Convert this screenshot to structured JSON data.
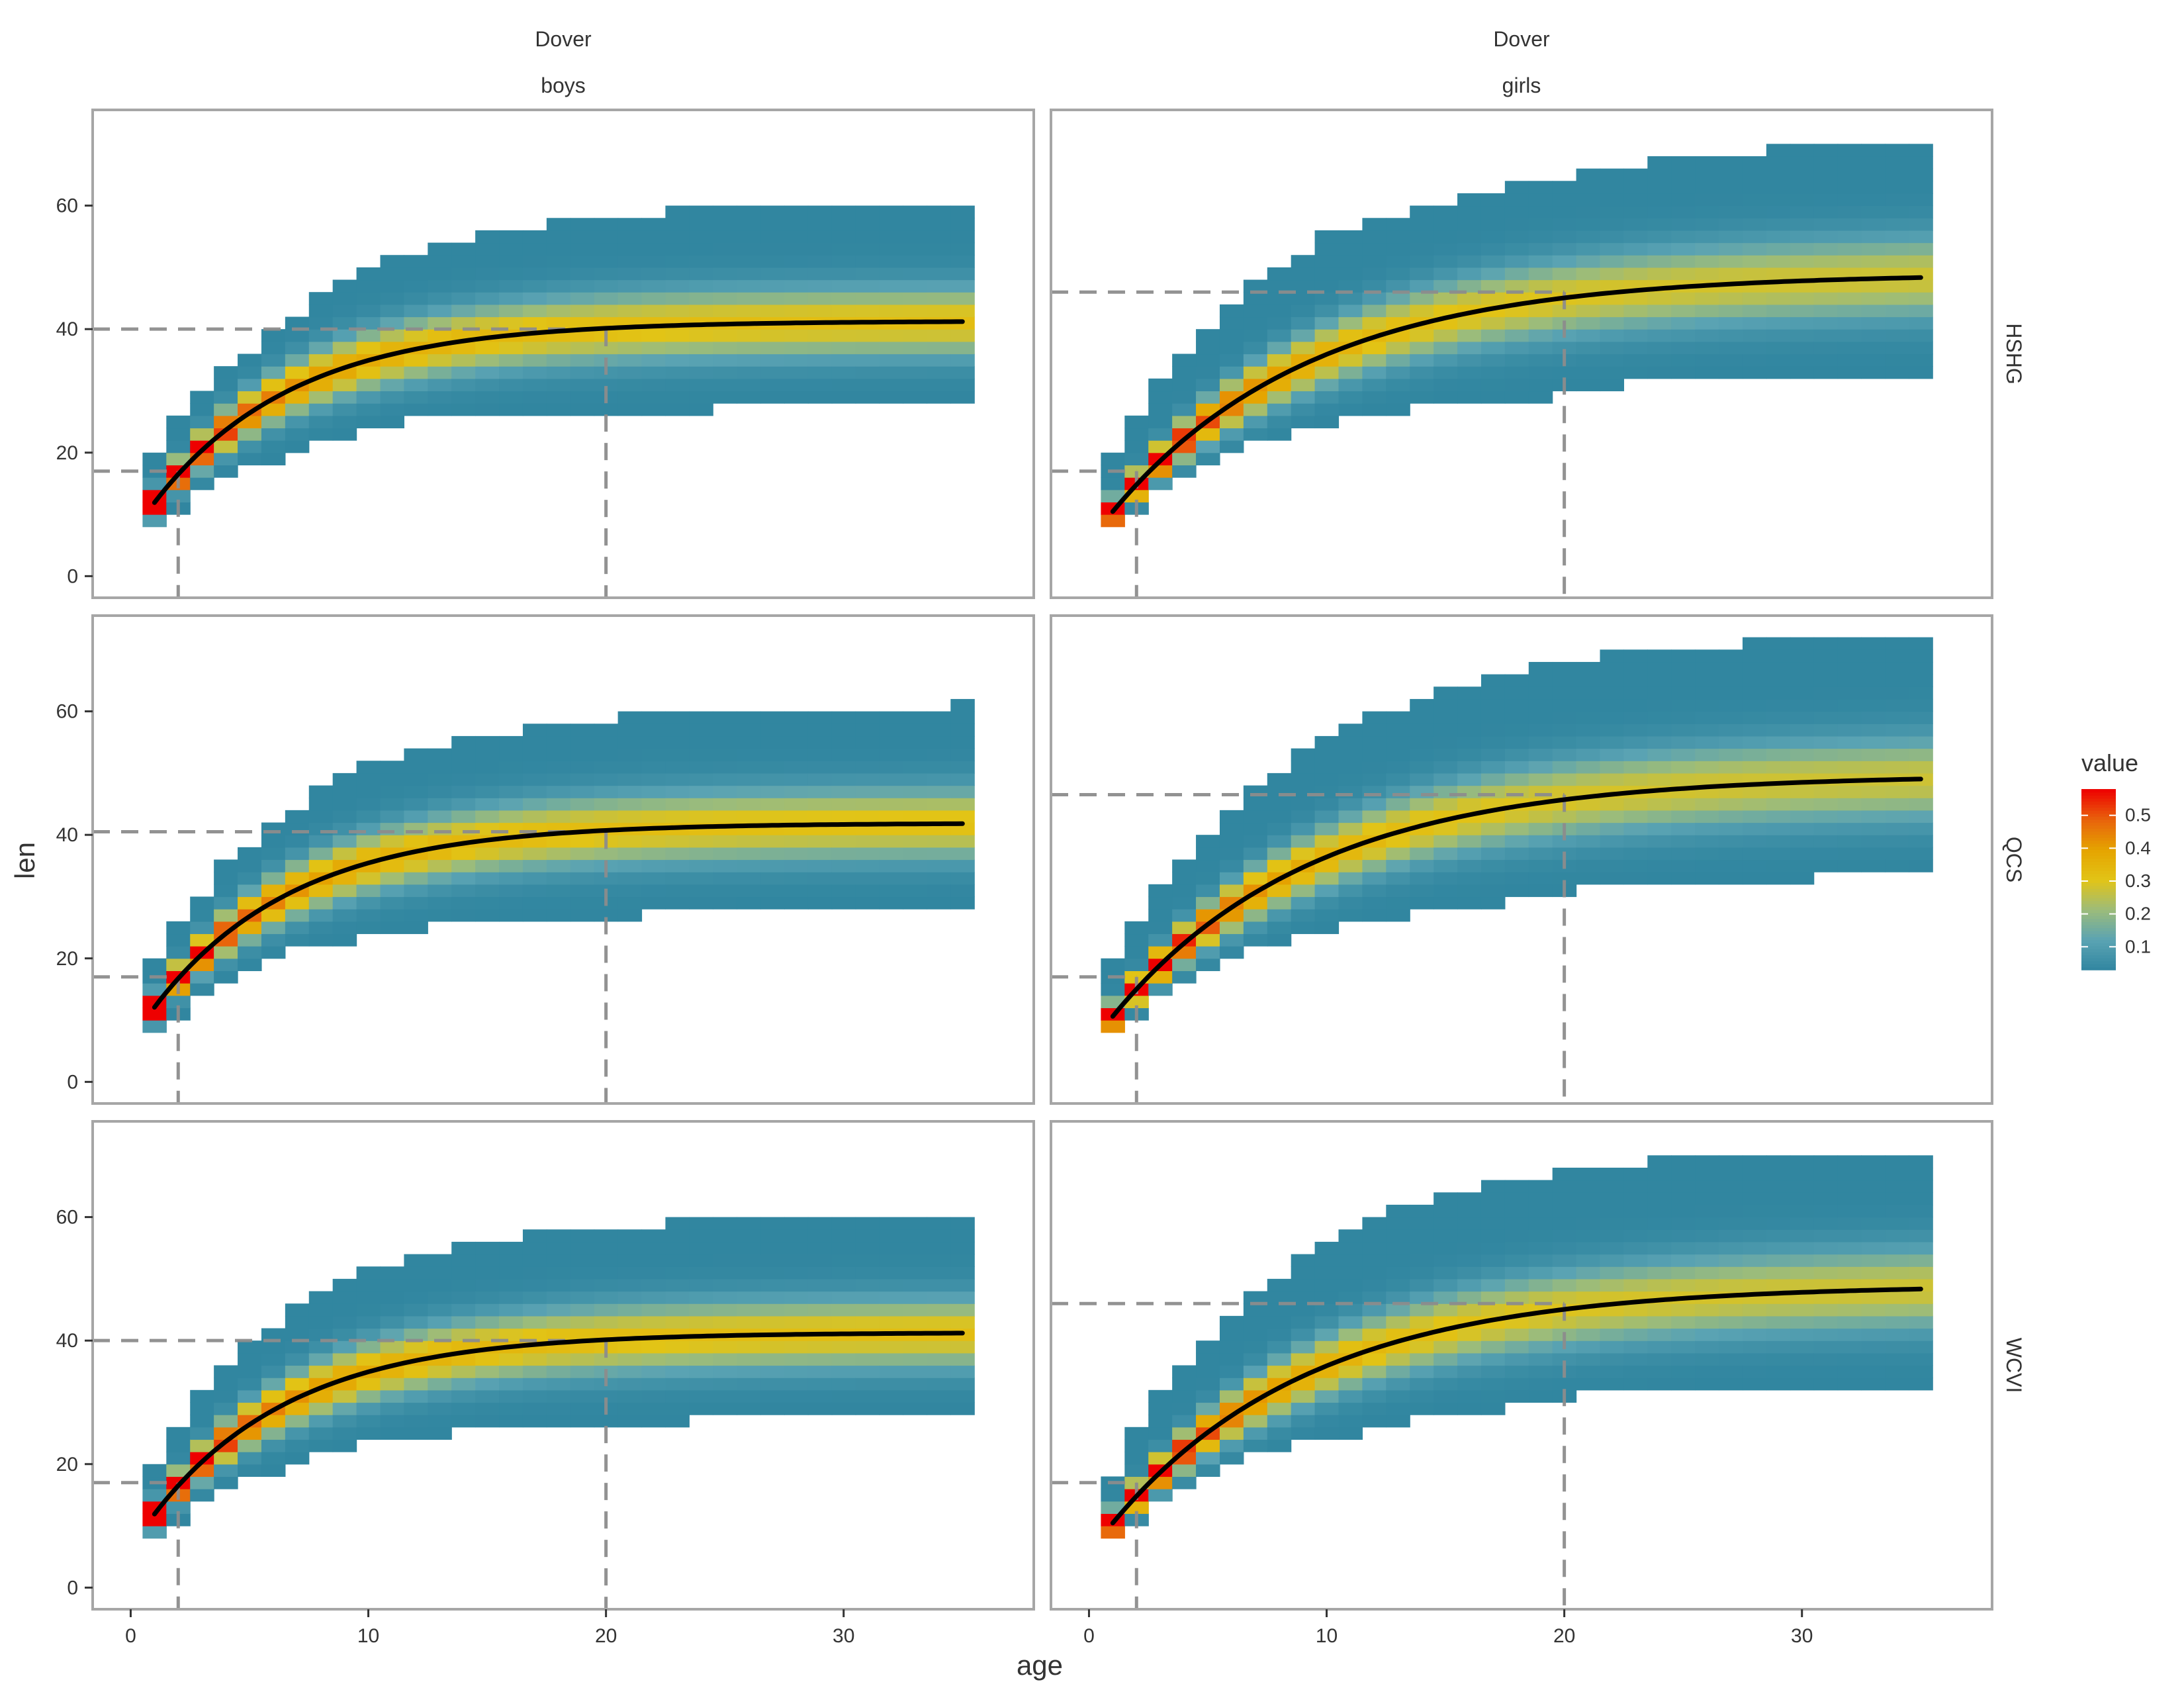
{
  "chart_data": {
    "type": "heatmap",
    "facet_columns": [
      {
        "key": "boys",
        "strip_top": "Dover",
        "strip_bottom": "boys",
        "Linf": 41.3,
        "K": 0.17,
        "t0": -1.0
      },
      {
        "key": "girls",
        "strip_top": "Dover",
        "strip_bottom": "girls",
        "Linf": 49.0,
        "K": 0.12,
        "t0": -1.0
      }
    ],
    "facet_rows": [
      "HSHG",
      "QCS",
      "WCVI"
    ],
    "panels": [
      {
        "row": "HSHG",
        "column": "boys",
        "Linf": 41.3,
        "ref_age_short": 2,
        "ref_len_short": 17,
        "ref_age_long": 20,
        "ref_len_long": 40,
        "upper": [
          20,
          26,
          30,
          34,
          36,
          40,
          42,
          46,
          48,
          50,
          52,
          52,
          54,
          54,
          56,
          56,
          56,
          58,
          58,
          58,
          58,
          58,
          60,
          60,
          60,
          60,
          60,
          60,
          60,
          60,
          60,
          60,
          60,
          60,
          60
        ],
        "lower": [
          8,
          10,
          14,
          16,
          18,
          18,
          20,
          22,
          22,
          24,
          24,
          26,
          26,
          26,
          26,
          26,
          26,
          26,
          26,
          26,
          26,
          26,
          26,
          26,
          28,
          28,
          28,
          28,
          28,
          28,
          28,
          28,
          28,
          28,
          28
        ]
      },
      {
        "row": "HSHG",
        "column": "girls",
        "Linf": 49.0,
        "ref_age_short": 2,
        "ref_len_short": 17,
        "ref_age_long": 20,
        "ref_len_long": 46,
        "upper": [
          20,
          26,
          32,
          36,
          40,
          44,
          48,
          50,
          52,
          56,
          56,
          58,
          58,
          60,
          60,
          62,
          62,
          64,
          64,
          64,
          66,
          66,
          66,
          68,
          68,
          68,
          68,
          68,
          70,
          70,
          70,
          70,
          70,
          70,
          70
        ],
        "lower": [
          8,
          10,
          14,
          16,
          18,
          20,
          22,
          22,
          24,
          24,
          26,
          26,
          26,
          28,
          28,
          28,
          28,
          28,
          28,
          30,
          30,
          30,
          32,
          32,
          32,
          32,
          32,
          32,
          32,
          32,
          32,
          32,
          32,
          32,
          32
        ]
      },
      {
        "row": "QCS",
        "column": "boys",
        "Linf": 41.9,
        "ref_age_short": 2,
        "ref_len_short": 17,
        "ref_age_long": 20,
        "ref_len_long": 40.5,
        "upper": [
          20,
          26,
          30,
          36,
          38,
          42,
          44,
          48,
          50,
          52,
          52,
          54,
          54,
          56,
          56,
          56,
          58,
          58,
          58,
          58,
          60,
          60,
          60,
          60,
          60,
          60,
          60,
          60,
          60,
          60,
          60,
          60,
          60,
          60,
          62
        ],
        "lower": [
          8,
          10,
          14,
          16,
          18,
          20,
          22,
          22,
          22,
          24,
          24,
          24,
          26,
          26,
          26,
          26,
          26,
          26,
          26,
          26,
          26,
          28,
          28,
          28,
          28,
          28,
          28,
          28,
          28,
          28,
          28,
          28,
          28,
          28,
          28
        ]
      },
      {
        "row": "QCS",
        "column": "girls",
        "Linf": 49.7,
        "ref_age_short": 2,
        "ref_len_short": 17,
        "ref_age_long": 20,
        "ref_len_long": 46.5,
        "upper": [
          20,
          26,
          32,
          36,
          40,
          44,
          48,
          50,
          54,
          56,
          58,
          60,
          60,
          62,
          64,
          64,
          66,
          66,
          68,
          68,
          68,
          70,
          70,
          70,
          70,
          70,
          70,
          72,
          72,
          72,
          72,
          72,
          72,
          72,
          72
        ],
        "lower": [
          8,
          10,
          14,
          16,
          18,
          20,
          22,
          22,
          24,
          24,
          26,
          26,
          26,
          28,
          28,
          28,
          28,
          30,
          30,
          30,
          32,
          32,
          32,
          32,
          32,
          32,
          32,
          32,
          32,
          32,
          34,
          34,
          34,
          34,
          34
        ]
      },
      {
        "row": "WCVI",
        "column": "boys",
        "Linf": 41.3,
        "ref_age_short": 2,
        "ref_len_short": 17,
        "ref_age_long": 20,
        "ref_len_long": 40,
        "upper": [
          20,
          26,
          32,
          36,
          40,
          42,
          46,
          48,
          50,
          52,
          52,
          54,
          54,
          56,
          56,
          56,
          58,
          58,
          58,
          58,
          58,
          58,
          60,
          60,
          60,
          60,
          60,
          60,
          60,
          60,
          60,
          60,
          60,
          60,
          60
        ],
        "lower": [
          8,
          10,
          14,
          16,
          18,
          18,
          20,
          22,
          22,
          24,
          24,
          24,
          24,
          26,
          26,
          26,
          26,
          26,
          26,
          26,
          26,
          26,
          26,
          28,
          28,
          28,
          28,
          28,
          28,
          28,
          28,
          28,
          28,
          28,
          28
        ]
      },
      {
        "row": "WCVI",
        "column": "girls",
        "Linf": 49.0,
        "ref_age_short": 2,
        "ref_len_short": 17,
        "ref_age_long": 20,
        "ref_len_long": 46,
        "upper": [
          18,
          26,
          32,
          36,
          40,
          44,
          48,
          50,
          54,
          56,
          58,
          60,
          62,
          62,
          64,
          64,
          66,
          66,
          66,
          68,
          68,
          68,
          68,
          70,
          70,
          70,
          70,
          70,
          70,
          70,
          70,
          70,
          70,
          70,
          70
        ],
        "lower": [
          8,
          10,
          14,
          16,
          18,
          20,
          22,
          22,
          24,
          24,
          24,
          26,
          26,
          28,
          28,
          28,
          28,
          30,
          30,
          30,
          32,
          32,
          32,
          32,
          32,
          32,
          32,
          32,
          32,
          32,
          32,
          32,
          32,
          32,
          32
        ]
      }
    ],
    "x": {
      "label": "age",
      "lim": [
        -1.6,
        38
      ],
      "ticks": [
        0,
        10,
        20,
        30
      ]
    },
    "y": {
      "label": "len",
      "lim": [
        -3.5,
        75.5
      ],
      "ticks": [
        0,
        20,
        40,
        60
      ]
    },
    "legend": {
      "title": "value",
      "position": "right",
      "range": [
        0.03,
        0.58
      ],
      "ticks": [
        0.1,
        0.2,
        0.3,
        0.4,
        0.5
      ],
      "tick_labels": [
        "0.1",
        "0.2",
        "0.3",
        "0.4",
        "0.5"
      ]
    },
    "colors": {
      "scale": [
        "#3186a0",
        "#5aa3b3",
        "#9cbc7a",
        "#e2c416",
        "#e5a300",
        "#e8620c",
        "#ee0000"
      ],
      "curve": "#000000",
      "reference_line": "#8c8c8c",
      "panel_border": "#a6a6a6"
    }
  }
}
